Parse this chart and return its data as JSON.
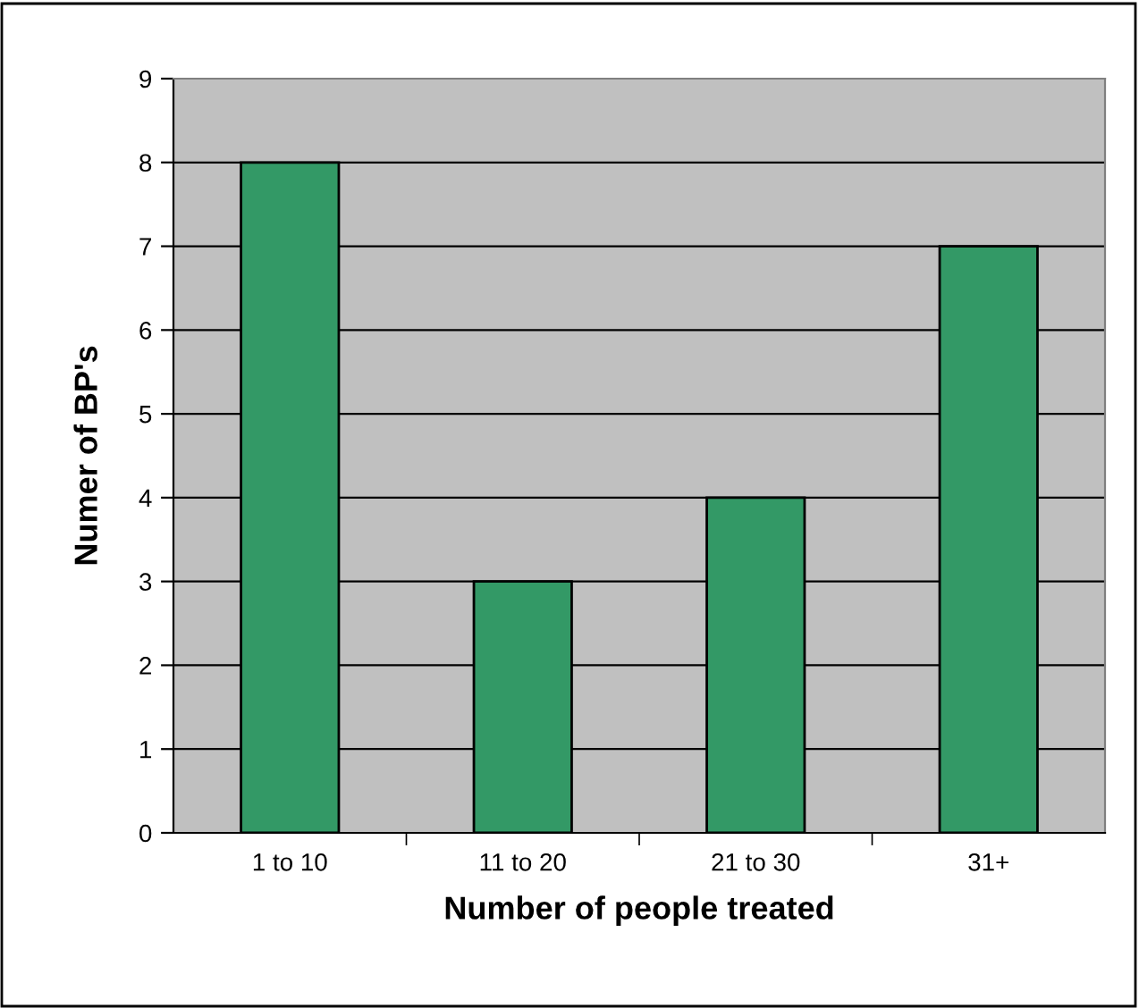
{
  "chart_data": {
    "type": "bar",
    "xlabel": "Number of people treated",
    "ylabel": "Numer of BP's",
    "categories": [
      "1 to 10",
      "11 to 20",
      "21 to 30",
      "31+"
    ],
    "values": [
      8,
      3,
      4,
      7
    ],
    "color": "#339966",
    "ylim": [
      0,
      9
    ],
    "yticks": [
      0,
      1,
      2,
      3,
      4,
      5,
      6,
      7,
      8,
      9
    ],
    "grid": "y",
    "legend": false
  }
}
